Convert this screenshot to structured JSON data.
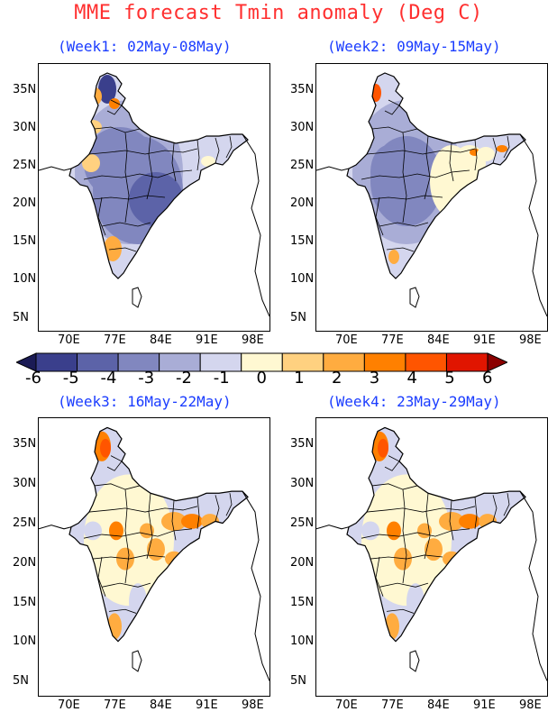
{
  "title": "MME forecast Tmin anomaly (Deg C)",
  "panels": [
    {
      "label": "(Week1: 02May-08May)",
      "pattern": "cold"
    },
    {
      "label": "(Week2: 09May-15May)",
      "pattern": "cold-east-warm"
    },
    {
      "label": "(Week3: 16May-22May)",
      "pattern": "mixed-warm"
    },
    {
      "label": "(Week4: 23May-29May)",
      "pattern": "mixed-warm"
    }
  ],
  "axes": {
    "lat_labels": [
      "35N",
      "30N",
      "25N",
      "20N",
      "15N",
      "10N",
      "5N"
    ],
    "lon_labels": [
      "70E",
      "77E",
      "84E",
      "91E",
      "98E"
    ]
  },
  "colorbar": {
    "labels": [
      "-6",
      "-5",
      "-4",
      "-3",
      "-2",
      "-1",
      "0",
      "1",
      "2",
      "3",
      "4",
      "5",
      "6"
    ],
    "colors": [
      "#1b1b55",
      "#3a3f8c",
      "#5c63a8",
      "#8187bf",
      "#a9add6",
      "#d4d6ee",
      "#fff8d2",
      "#ffd180",
      "#ffac40",
      "#ff8000",
      "#ff5500",
      "#e01500",
      "#8b0000"
    ]
  }
}
